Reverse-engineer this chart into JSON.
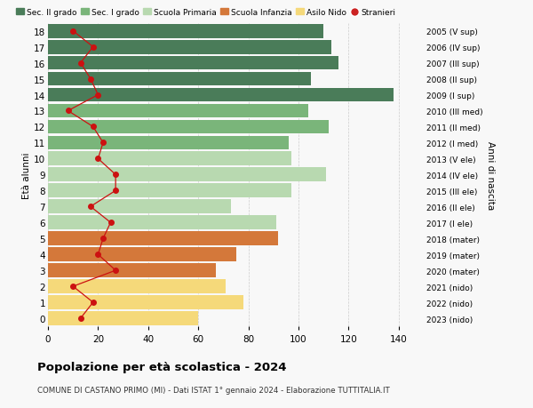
{
  "ages": [
    18,
    17,
    16,
    15,
    14,
    13,
    12,
    11,
    10,
    9,
    8,
    7,
    6,
    5,
    4,
    3,
    2,
    1,
    0
  ],
  "anni_nascita": [
    "2005 (V sup)",
    "2006 (IV sup)",
    "2007 (III sup)",
    "2008 (II sup)",
    "2009 (I sup)",
    "2010 (III med)",
    "2011 (II med)",
    "2012 (I med)",
    "2013 (V ele)",
    "2014 (IV ele)",
    "2015 (III ele)",
    "2016 (II ele)",
    "2017 (I ele)",
    "2018 (mater)",
    "2019 (mater)",
    "2020 (mater)",
    "2021 (nido)",
    "2022 (nido)",
    "2023 (nido)"
  ],
  "bar_values": [
    110,
    113,
    116,
    105,
    138,
    104,
    112,
    96,
    97,
    111,
    97,
    73,
    91,
    92,
    75,
    67,
    71,
    78,
    60
  ],
  "stranieri": [
    10,
    18,
    13,
    17,
    20,
    8,
    18,
    22,
    20,
    27,
    27,
    17,
    25,
    22,
    20,
    27,
    10,
    18,
    13
  ],
  "bar_colors": [
    "#4a7c59",
    "#4a7c59",
    "#4a7c59",
    "#4a7c59",
    "#4a7c59",
    "#7ab57a",
    "#7ab57a",
    "#7ab57a",
    "#b8d9b0",
    "#b8d9b0",
    "#b8d9b0",
    "#b8d9b0",
    "#b8d9b0",
    "#d4783a",
    "#d4783a",
    "#d4783a",
    "#f5d97a",
    "#f5d97a",
    "#f5d97a"
  ],
  "legend_labels": [
    "Sec. II grado",
    "Sec. I grado",
    "Scuola Primaria",
    "Scuola Infanzia",
    "Asilo Nido",
    "Stranieri"
  ],
  "legend_colors": [
    "#4a7c59",
    "#7ab57a",
    "#b8d9b0",
    "#d4783a",
    "#f5d97a",
    "#cc2222"
  ],
  "title": "Popolazione per età scolastica - 2024",
  "subtitle": "COMUNE DI CASTANO PRIMO (MI) - Dati ISTAT 1° gennaio 2024 - Elaborazione TUTTITALIA.IT",
  "ylabel": "Età alunni",
  "ylabel2": "Anni di nascita",
  "xlim_max": 150,
  "xticks": [
    0,
    20,
    40,
    60,
    80,
    100,
    120,
    140
  ],
  "background_color": "#f8f8f8",
  "grid_color": "#cccccc",
  "stranieri_color": "#cc1111"
}
